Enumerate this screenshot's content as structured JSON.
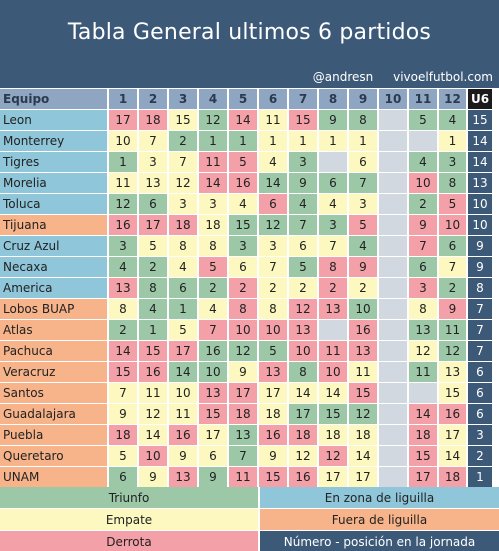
{
  "title": "Tabla General ultimos 6 partidos",
  "credits": {
    "author": "@andresn",
    "site": "vivoelfutbol.com"
  },
  "columns": {
    "team": "Equipo",
    "rounds": [
      "1",
      "2",
      "3",
      "4",
      "5",
      "6",
      "7",
      "8",
      "9",
      "10",
      "11",
      "12"
    ],
    "summary": "U6"
  },
  "rows": [
    {
      "team": "Leon",
      "zone": "in",
      "cells": [
        [
          "17",
          "l"
        ],
        [
          "18",
          "l"
        ],
        [
          "15",
          "d"
        ],
        [
          "12",
          "w"
        ],
        [
          "14",
          "l"
        ],
        [
          "11",
          "d"
        ],
        [
          "15",
          "l"
        ],
        [
          "9",
          "w"
        ],
        [
          "8",
          "w"
        ],
        [
          "",
          ""
        ],
        [
          "5",
          "w"
        ],
        [
          "4",
          "w"
        ]
      ],
      "u6": "15"
    },
    {
      "team": "Monterrey",
      "zone": "in",
      "cells": [
        [
          "10",
          "d"
        ],
        [
          "7",
          "d"
        ],
        [
          "2",
          "w"
        ],
        [
          "1",
          "w"
        ],
        [
          "1",
          "w"
        ],
        [
          "1",
          "d"
        ],
        [
          "1",
          "d"
        ],
        [
          "1",
          "d"
        ],
        [
          "1",
          "d"
        ],
        [
          "",
          ""
        ],
        [
          "",
          ""
        ],
        [
          "1",
          "d"
        ]
      ],
      "u6": "14"
    },
    {
      "team": "Tigres",
      "zone": "in",
      "cells": [
        [
          "1",
          "w"
        ],
        [
          "3",
          "d"
        ],
        [
          "7",
          "d"
        ],
        [
          "11",
          "l"
        ],
        [
          "5",
          "l"
        ],
        [
          "4",
          "d"
        ],
        [
          "3",
          "w"
        ],
        [
          "",
          ""
        ],
        [
          "6",
          "d"
        ],
        [
          "",
          ""
        ],
        [
          "4",
          "w"
        ],
        [
          "3",
          "w"
        ]
      ],
      "u6": "14"
    },
    {
      "team": "Morelia",
      "zone": "in",
      "cells": [
        [
          "11",
          "d"
        ],
        [
          "13",
          "d"
        ],
        [
          "12",
          "d"
        ],
        [
          "14",
          "l"
        ],
        [
          "16",
          "l"
        ],
        [
          "14",
          "w"
        ],
        [
          "9",
          "w"
        ],
        [
          "6",
          "w"
        ],
        [
          "7",
          "w"
        ],
        [
          "",
          ""
        ],
        [
          "10",
          "l"
        ],
        [
          "8",
          "w"
        ]
      ],
      "u6": "13"
    },
    {
      "team": "Toluca",
      "zone": "in",
      "cells": [
        [
          "12",
          "w"
        ],
        [
          "6",
          "w"
        ],
        [
          "3",
          "d"
        ],
        [
          "3",
          "d"
        ],
        [
          "4",
          "d"
        ],
        [
          "6",
          "l"
        ],
        [
          "4",
          "w"
        ],
        [
          "4",
          "d"
        ],
        [
          "3",
          "d"
        ],
        [
          "",
          ""
        ],
        [
          "2",
          "w"
        ],
        [
          "5",
          "l"
        ]
      ],
      "u6": "10"
    },
    {
      "team": "Tijuana",
      "zone": "out",
      "cells": [
        [
          "16",
          "l"
        ],
        [
          "17",
          "l"
        ],
        [
          "18",
          "l"
        ],
        [
          "18",
          "d"
        ],
        [
          "15",
          "w"
        ],
        [
          "12",
          "w"
        ],
        [
          "7",
          "w"
        ],
        [
          "3",
          "w"
        ],
        [
          "5",
          "l"
        ],
        [
          "",
          ""
        ],
        [
          "9",
          "l"
        ],
        [
          "10",
          "l"
        ]
      ],
      "u6": "10"
    },
    {
      "team": "Cruz Azul",
      "zone": "in",
      "cells": [
        [
          "3",
          "w"
        ],
        [
          "5",
          "d"
        ],
        [
          "8",
          "d"
        ],
        [
          "8",
          "d"
        ],
        [
          "3",
          "w"
        ],
        [
          "3",
          "d"
        ],
        [
          "6",
          "d"
        ],
        [
          "7",
          "d"
        ],
        [
          "4",
          "w"
        ],
        [
          "",
          ""
        ],
        [
          "7",
          "l"
        ],
        [
          "6",
          "w"
        ]
      ],
      "u6": "9"
    },
    {
      "team": "Necaxa",
      "zone": "in",
      "cells": [
        [
          "4",
          "w"
        ],
        [
          "2",
          "w"
        ],
        [
          "4",
          "d"
        ],
        [
          "5",
          "l"
        ],
        [
          "6",
          "d"
        ],
        [
          "7",
          "d"
        ],
        [
          "5",
          "w"
        ],
        [
          "8",
          "l"
        ],
        [
          "9",
          "l"
        ],
        [
          "",
          ""
        ],
        [
          "6",
          "w"
        ],
        [
          "7",
          "d"
        ]
      ],
      "u6": "9"
    },
    {
      "team": "America",
      "zone": "in",
      "cells": [
        [
          "13",
          "l"
        ],
        [
          "8",
          "w"
        ],
        [
          "6",
          "w"
        ],
        [
          "2",
          "w"
        ],
        [
          "2",
          "l"
        ],
        [
          "2",
          "d"
        ],
        [
          "2",
          "d"
        ],
        [
          "2",
          "l"
        ],
        [
          "2",
          "d"
        ],
        [
          "",
          ""
        ],
        [
          "3",
          "l"
        ],
        [
          "2",
          "w"
        ]
      ],
      "u6": "8"
    },
    {
      "team": "Lobos BUAP",
      "zone": "out",
      "cells": [
        [
          "8",
          "d"
        ],
        [
          "4",
          "w"
        ],
        [
          "1",
          "w"
        ],
        [
          "4",
          "d"
        ],
        [
          "8",
          "l"
        ],
        [
          "8",
          "d"
        ],
        [
          "12",
          "l"
        ],
        [
          "13",
          "l"
        ],
        [
          "10",
          "w"
        ],
        [
          "",
          ""
        ],
        [
          "8",
          "d"
        ],
        [
          "9",
          "l"
        ]
      ],
      "u6": "7"
    },
    {
      "team": "Atlas",
      "zone": "out",
      "cells": [
        [
          "2",
          "w"
        ],
        [
          "1",
          "w"
        ],
        [
          "5",
          "d"
        ],
        [
          "7",
          "l"
        ],
        [
          "10",
          "l"
        ],
        [
          "10",
          "l"
        ],
        [
          "13",
          "l"
        ],
        [
          "",
          ""
        ],
        [
          "16",
          "l"
        ],
        [
          "",
          ""
        ],
        [
          "13",
          "w"
        ],
        [
          "11",
          "w"
        ]
      ],
      "u6": "7"
    },
    {
      "team": "Pachuca",
      "zone": "out",
      "cells": [
        [
          "14",
          "l"
        ],
        [
          "15",
          "l"
        ],
        [
          "17",
          "l"
        ],
        [
          "16",
          "w"
        ],
        [
          "12",
          "w"
        ],
        [
          "5",
          "w"
        ],
        [
          "10",
          "l"
        ],
        [
          "11",
          "l"
        ],
        [
          "13",
          "l"
        ],
        [
          "",
          ""
        ],
        [
          "12",
          "d"
        ],
        [
          "12",
          "w"
        ]
      ],
      "u6": "7"
    },
    {
      "team": "Veracruz",
      "zone": "out",
      "cells": [
        [
          "15",
          "l"
        ],
        [
          "16",
          "l"
        ],
        [
          "14",
          "w"
        ],
        [
          "10",
          "w"
        ],
        [
          "9",
          "d"
        ],
        [
          "13",
          "l"
        ],
        [
          "8",
          "w"
        ],
        [
          "10",
          "l"
        ],
        [
          "11",
          "d"
        ],
        [
          "",
          ""
        ],
        [
          "11",
          "w"
        ],
        [
          "13",
          "d"
        ]
      ],
      "u6": "6"
    },
    {
      "team": "Santos",
      "zone": "out",
      "cells": [
        [
          "7",
          "d"
        ],
        [
          "11",
          "d"
        ],
        [
          "10",
          "d"
        ],
        [
          "13",
          "l"
        ],
        [
          "17",
          "l"
        ],
        [
          "17",
          "d"
        ],
        [
          "14",
          "d"
        ],
        [
          "14",
          "d"
        ],
        [
          "15",
          "l"
        ],
        [
          "",
          ""
        ],
        [
          "",
          ""
        ],
        [
          "15",
          "d"
        ]
      ],
      "u6": "6"
    },
    {
      "team": "Guadalajara",
      "zone": "out",
      "cells": [
        [
          "9",
          "d"
        ],
        [
          "12",
          "d"
        ],
        [
          "11",
          "d"
        ],
        [
          "15",
          "l"
        ],
        [
          "18",
          "l"
        ],
        [
          "18",
          "d"
        ],
        [
          "17",
          "w"
        ],
        [
          "15",
          "w"
        ],
        [
          "12",
          "w"
        ],
        [
          "",
          ""
        ],
        [
          "14",
          "l"
        ],
        [
          "16",
          "l"
        ]
      ],
      "u6": "6"
    },
    {
      "team": "Puebla",
      "zone": "out",
      "cells": [
        [
          "18",
          "l"
        ],
        [
          "14",
          "d"
        ],
        [
          "16",
          "l"
        ],
        [
          "17",
          "d"
        ],
        [
          "13",
          "w"
        ],
        [
          "16",
          "l"
        ],
        [
          "18",
          "l"
        ],
        [
          "18",
          "d"
        ],
        [
          "18",
          "d"
        ],
        [
          "",
          ""
        ],
        [
          "18",
          "l"
        ],
        [
          "17",
          "d"
        ]
      ],
      "u6": "3"
    },
    {
      "team": "Queretaro",
      "zone": "out",
      "cells": [
        [
          "5",
          "d"
        ],
        [
          "10",
          "l"
        ],
        [
          "9",
          "d"
        ],
        [
          "6",
          "d"
        ],
        [
          "7",
          "w"
        ],
        [
          "9",
          "d"
        ],
        [
          "12",
          "d"
        ],
        [
          "12",
          "l"
        ],
        [
          "14",
          "d"
        ],
        [
          "",
          ""
        ],
        [
          "15",
          "l"
        ],
        [
          "14",
          "d"
        ]
      ],
      "u6": "2"
    },
    {
      "team": "UNAM",
      "zone": "out",
      "cells": [
        [
          "6",
          "w"
        ],
        [
          "9",
          "d"
        ],
        [
          "13",
          "l"
        ],
        [
          "9",
          "w"
        ],
        [
          "11",
          "l"
        ],
        [
          "15",
          "l"
        ],
        [
          "16",
          "l"
        ],
        [
          "17",
          "d"
        ],
        [
          "17",
          "d"
        ],
        [
          "",
          ""
        ],
        [
          "17",
          "l"
        ],
        [
          "18",
          "l"
        ]
      ],
      "u6": "1"
    }
  ],
  "legend": {
    "win": "Triunfo",
    "draw": "Empate",
    "loss": "Derrota",
    "in_zone": "En zona de liguilla",
    "out_zone": "Fuera de liguilla",
    "number": "Número - posición en la jornada"
  }
}
